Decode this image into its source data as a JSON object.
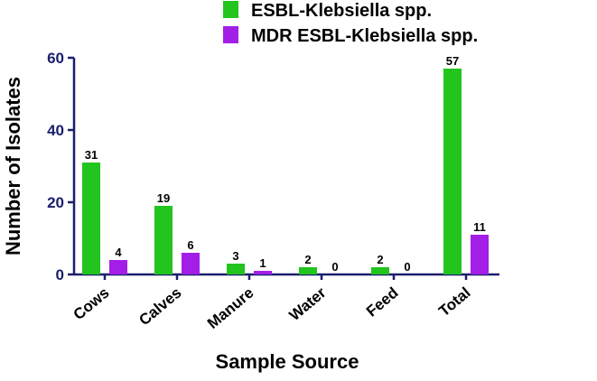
{
  "chart_data": {
    "type": "bar",
    "x_label": "Sample Source",
    "y_label": "Number of Isolates",
    "categories": [
      "Cows",
      "Calves",
      "Manure",
      "Water",
      "Feed",
      "Total"
    ],
    "series": [
      {
        "name": "ESBL-Klebsiella spp.",
        "color": "#22c41e",
        "values": [
          31,
          19,
          3,
          2,
          2,
          57
        ]
      },
      {
        "name": "MDR ESBL-Klebsiella spp.",
        "color": "#a31ee6",
        "values": [
          4,
          6,
          1,
          0,
          0,
          11
        ]
      }
    ],
    "ylim": [
      0,
      60
    ],
    "yticks": [
      0,
      20,
      40,
      60
    ],
    "grid": false,
    "legend": "top-right"
  }
}
